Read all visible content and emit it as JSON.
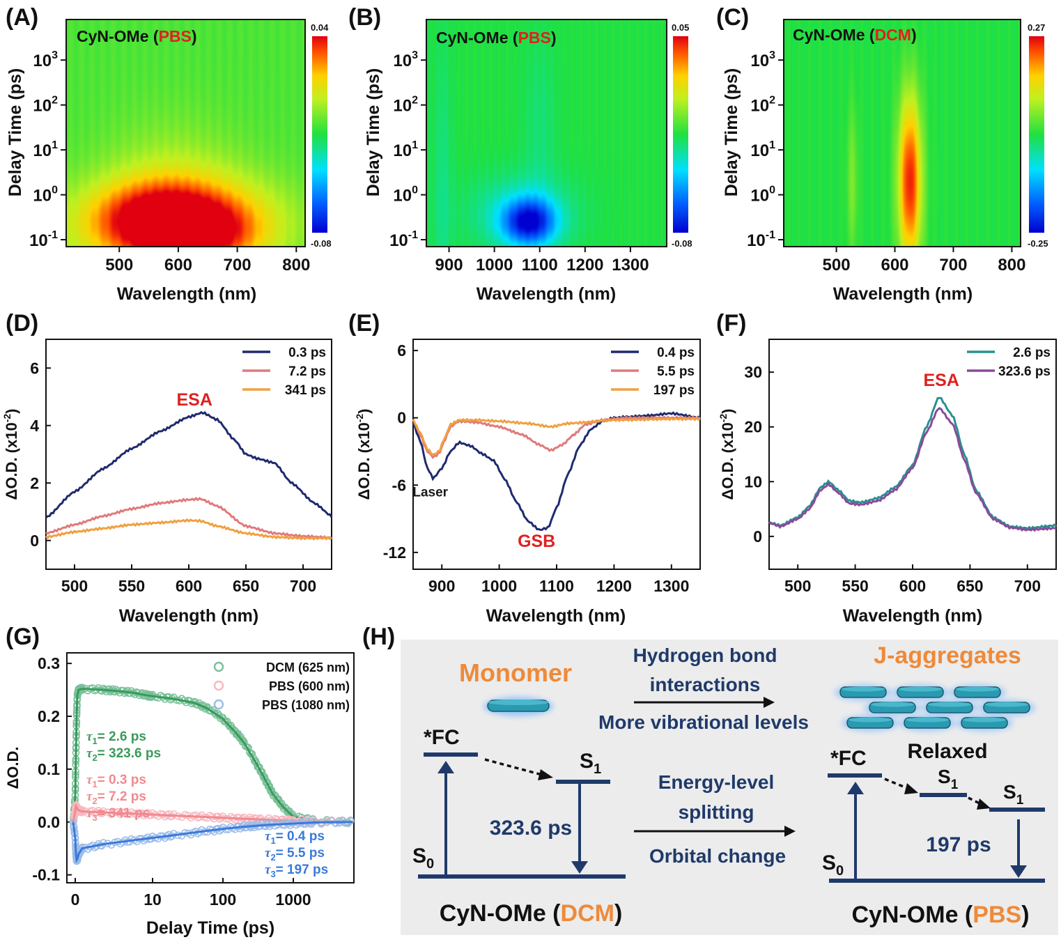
{
  "figure": {
    "panel_labels": [
      "(A)",
      "(B)",
      "(C)",
      "(D)",
      "(E)",
      "(F)",
      "(G)",
      "(H)"
    ],
    "colors": {
      "navy": "#1f2a6e",
      "salmon": "#e07a7a",
      "orange": "#f0a040",
      "teal": "#2a9090",
      "purple": "#8a4a9a",
      "green_fit": "#3a9a5a",
      "green_pts": "#7ac09a",
      "pink_fit": "#f08a90",
      "pink_pts": "#f8b8c0",
      "blue_fit": "#3a7ad8",
      "blue_pts": "#9cbce8",
      "red_label": "#e02020",
      "orange_label": "#ee8a3a",
      "scheme_bg": "#ececec",
      "scheme_dark": "#1f3a6a",
      "disc": "#2a9ab0"
    }
  },
  "chart_data": [
    {
      "panel": "(A)",
      "type": "heatmap",
      "title_main": "CyN-OMe (",
      "title_solvent": "PBS",
      "title_close": ")",
      "xlabel": "Wavelength (nm)",
      "ylabel": "Delay Time (ps)",
      "xlim": [
        410,
        815
      ],
      "xticks": [
        500,
        600,
        700,
        800
      ],
      "yscale": "log",
      "ylim": [
        0.07,
        8000
      ],
      "yticks": [
        {
          "v": 0.1,
          "b": "10",
          "e": "-1"
        },
        {
          "v": 1,
          "b": "10",
          "e": "0"
        },
        {
          "v": 10,
          "b": "10",
          "e": "1"
        },
        {
          "v": 100,
          "b": "10",
          "e": "2"
        },
        {
          "v": 1000,
          "b": "10",
          "e": "3"
        }
      ],
      "colorbar": {
        "max": "0.04",
        "min": "-0.08"
      },
      "background_value": 0.1,
      "blobs": [
        {
          "x": 600,
          "y": 0.2,
          "sx": 110,
          "sy": 0.75,
          "amp": 0.95
        },
        {
          "x": 560,
          "y": 0.3,
          "sx": 70,
          "sy": 0.5,
          "amp": 0.4
        },
        {
          "x": 650,
          "y": 0.15,
          "sx": 50,
          "sy": 0.4,
          "amp": 0.3
        },
        {
          "x": 590,
          "y": 3,
          "sx": 80,
          "sy": 1.0,
          "amp": 0.15
        }
      ]
    },
    {
      "panel": "(B)",
      "type": "heatmap",
      "title_main": "CyN-OMe (",
      "title_solvent": "PBS",
      "title_close": ")",
      "xlabel": "Wavelength (nm)",
      "ylabel": "Delay Time (ps)",
      "xlim": [
        850,
        1380
      ],
      "xticks": [
        900,
        1000,
        1100,
        1200,
        1300
      ],
      "yscale": "log",
      "ylim": [
        0.07,
        8000
      ],
      "yticks": [
        {
          "v": 0.1,
          "b": "10",
          "e": "-1"
        },
        {
          "v": 1,
          "b": "10",
          "e": "0"
        },
        {
          "v": 10,
          "b": "10",
          "e": "1"
        },
        {
          "v": 100,
          "b": "10",
          "e": "2"
        },
        {
          "v": 1000,
          "b": "10",
          "e": "3"
        }
      ],
      "colorbar": {
        "max": "0.05",
        "min": "-0.08"
      },
      "background_value": 0.0,
      "blobs": [
        {
          "x": 1075,
          "y": 0.25,
          "sx": 40,
          "sy": 0.35,
          "amp": -0.85
        },
        {
          "x": 1060,
          "y": 0.4,
          "sx": 80,
          "sy": 0.6,
          "amp": -0.25
        },
        {
          "x": 1100,
          "y": 30,
          "sx": 25,
          "sy": 1.5,
          "amp": -0.1
        },
        {
          "x": 885,
          "y": 1,
          "sx": 15,
          "sy": 2.5,
          "amp": -0.12
        }
      ]
    },
    {
      "panel": "(C)",
      "type": "heatmap",
      "title_main": "CyN-OMe (",
      "title_solvent": "DCM",
      "title_close": ")",
      "xlabel": "Wavelength (nm)",
      "ylabel": "Delay Time (ps)",
      "xlim": [
        410,
        815
      ],
      "xticks": [
        500,
        600,
        700,
        800
      ],
      "yscale": "log",
      "ylim": [
        0.07,
        8000
      ],
      "yticks": [
        {
          "v": 0.1,
          "b": "10",
          "e": "-1"
        },
        {
          "v": 1,
          "b": "10",
          "e": "0"
        },
        {
          "v": 10,
          "b": "10",
          "e": "1"
        },
        {
          "v": 100,
          "b": "10",
          "e": "2"
        },
        {
          "v": 1000,
          "b": "10",
          "e": "3"
        }
      ],
      "colorbar": {
        "max": "0.27",
        "min": "-0.25"
      },
      "background_value": 0.0,
      "blobs": [
        {
          "x": 625,
          "y": 2,
          "sx": 14,
          "sy": 1.35,
          "amp": 0.95
        },
        {
          "x": 527,
          "y": 2,
          "sx": 7,
          "sy": 1.2,
          "amp": 0.2
        }
      ]
    },
    {
      "panel": "(D)",
      "type": "line",
      "xlabel": "Wavelength (nm)",
      "ylabel_main": "ΔO.D. (x10",
      "ylabel_exp": "-2",
      "ylabel_close": ")",
      "xlim": [
        475,
        725
      ],
      "ylim": [
        -1,
        7
      ],
      "xticks": [
        500,
        550,
        600,
        650,
        700
      ],
      "yticks": [
        0,
        2,
        4,
        6
      ],
      "legend_position": "top-right",
      "series": [
        {
          "name": "0.3 ps",
          "color": "#1f2a6e",
          "x": [
            475,
            500,
            525,
            550,
            575,
            600,
            612,
            625,
            640,
            650,
            660,
            675,
            690,
            710,
            725
          ],
          "y": [
            0.8,
            1.7,
            2.5,
            3.2,
            3.8,
            4.3,
            4.45,
            4.2,
            3.5,
            3.0,
            2.85,
            2.7,
            2.0,
            1.3,
            0.85
          ]
        },
        {
          "name": "7.2 ps",
          "color": "#e07a7a",
          "x": [
            475,
            500,
            525,
            550,
            575,
            600,
            610,
            625,
            650,
            675,
            700,
            725
          ],
          "y": [
            0.25,
            0.55,
            0.85,
            1.1,
            1.3,
            1.42,
            1.45,
            1.2,
            0.5,
            0.25,
            0.15,
            0.1
          ]
        },
        {
          "name": "341 ps",
          "color": "#f0a040",
          "x": [
            475,
            500,
            525,
            550,
            575,
            600,
            610,
            625,
            650,
            675,
            700,
            725
          ],
          "y": [
            0.12,
            0.3,
            0.42,
            0.55,
            0.62,
            0.7,
            0.68,
            0.5,
            0.25,
            0.12,
            0.08,
            0.08
          ]
        }
      ],
      "annotations": [
        {
          "text": "ESA",
          "x": 605,
          "y": 4.7,
          "color": "#e02020"
        }
      ]
    },
    {
      "panel": "(E)",
      "type": "line",
      "xlabel": "Wavelength (nm)",
      "ylabel_main": "ΔO.D. (x10",
      "ylabel_exp": "-2",
      "ylabel_close": ")",
      "xlim": [
        850,
        1350
      ],
      "ylim": [
        -13.5,
        7
      ],
      "xticks": [
        900,
        1000,
        1100,
        1200,
        1300
      ],
      "yticks": [
        -12,
        -6,
        0,
        6
      ],
      "legend_position": "top-right",
      "series": [
        {
          "name": "0.4 ps",
          "color": "#1f2a6e",
          "x": [
            850,
            862,
            875,
            885,
            900,
            915,
            930,
            950,
            970,
            990,
            1010,
            1030,
            1050,
            1070,
            1085,
            1100,
            1120,
            1140,
            1160,
            1180,
            1200,
            1230,
            1260,
            1300,
            1350
          ],
          "y": [
            -0.5,
            -2,
            -4.5,
            -5.4,
            -4.5,
            -3,
            -2.2,
            -2.5,
            -3.2,
            -3.8,
            -5.5,
            -7.5,
            -9.2,
            -10,
            -9.8,
            -8,
            -5,
            -2.5,
            -1,
            -0.3,
            0,
            0.1,
            0.2,
            0.4,
            0
          ]
        },
        {
          "name": "5.5 ps",
          "color": "#e07a7a",
          "x": [
            850,
            862,
            875,
            885,
            895,
            905,
            915,
            930,
            960,
            1000,
            1040,
            1070,
            1090,
            1110,
            1130,
            1150,
            1180,
            1220,
            1300,
            1350
          ],
          "y": [
            -0.2,
            -1.5,
            -3,
            -3.5,
            -3.2,
            -2,
            -0.8,
            -0.3,
            -0.4,
            -0.8,
            -1.5,
            -2.4,
            -2.9,
            -2.4,
            -1.5,
            -0.6,
            -0.2,
            0,
            0,
            0
          ]
        },
        {
          "name": "197 ps",
          "color": "#f0a040",
          "x": [
            850,
            862,
            875,
            885,
            895,
            905,
            915,
            930,
            960,
            1000,
            1050,
            1090,
            1120,
            1200,
            1300,
            1350
          ],
          "y": [
            -0.2,
            -1.3,
            -2.8,
            -3.3,
            -3,
            -1.8,
            -0.6,
            -0.2,
            -0.2,
            -0.3,
            -0.5,
            -0.8,
            -0.5,
            -0.2,
            -0.1,
            -0.1
          ]
        }
      ],
      "annotations": [
        {
          "text": "GSB",
          "x": 1065,
          "y": -11.5,
          "color": "#e02020"
        },
        {
          "text": "Laser",
          "x": 880,
          "y": -7,
          "color": "#1a1a1a"
        }
      ]
    },
    {
      "panel": "(F)",
      "type": "line",
      "xlabel": "Wavelength (nm)",
      "ylabel_main": "ΔO.D. (x10",
      "ylabel_exp": "-2",
      "ylabel_close": ")",
      "xlim": [
        475,
        725
      ],
      "ylim": [
        -6,
        36
      ],
      "xticks": [
        500,
        550,
        600,
        650,
        700
      ],
      "yticks": [
        0,
        10,
        20,
        30
      ],
      "legend_position": "top-right",
      "series": [
        {
          "name": "2.6 ps",
          "color": "#2a9090",
          "x": [
            475,
            485,
            500,
            510,
            520,
            527,
            535,
            545,
            555,
            570,
            585,
            600,
            612,
            623,
            635,
            645,
            655,
            670,
            685,
            700,
            725
          ],
          "y": [
            2.5,
            2,
            3.5,
            5.5,
            9,
            10,
            8.5,
            6.5,
            6.2,
            7,
            9,
            13,
            20,
            25.5,
            22,
            15,
            8.5,
            3.5,
            1.8,
            1.5,
            2
          ]
        },
        {
          "name": "323.6 ps",
          "color": "#8a4a9a",
          "x": [
            475,
            485,
            500,
            510,
            520,
            527,
            535,
            545,
            555,
            570,
            585,
            600,
            612,
            623,
            635,
            645,
            655,
            670,
            685,
            700,
            725
          ],
          "y": [
            2.5,
            1.8,
            3.2,
            5,
            8.5,
            9.5,
            8,
            6,
            5.8,
            6.5,
            8.5,
            12.5,
            19,
            23.5,
            20.5,
            14,
            8,
            3.2,
            1.6,
            1.2,
            1.5
          ]
        }
      ],
      "annotations": [
        {
          "text": "ESA",
          "x": 625,
          "y": 27.5,
          "color": "#e02020"
        }
      ]
    },
    {
      "panel": "(G)",
      "type": "scatter",
      "xlabel": "Delay Time (ps)",
      "ylabel": "ΔO.D.",
      "xscale": "linear-log",
      "xlim": [
        -0.5,
        7000
      ],
      "ylim": [
        -0.115,
        0.32
      ],
      "xticks": [
        {
          "v": 0,
          "label": "0"
        },
        {
          "v": 10,
          "label": "10"
        },
        {
          "v": 100,
          "label": "100"
        },
        {
          "v": 1000,
          "label": "1000"
        }
      ],
      "yticks": [
        {
          "v": -0.1,
          "label": "-0.1"
        },
        {
          "v": 0.0,
          "label": "0.0"
        },
        {
          "v": 0.1,
          "label": "0.1"
        },
        {
          "v": 0.2,
          "label": "0.2"
        },
        {
          "v": 0.3,
          "label": "0.3"
        }
      ],
      "legend_position": "top-right",
      "series": [
        {
          "name": "DCM (625 nm)",
          "color": "#3a9a5a",
          "point_color": "#7ac09a",
          "x": [
            -0.3,
            0,
            0.1,
            0.2,
            0.3,
            0.5,
            1,
            2,
            3,
            5,
            8,
            10,
            20,
            40,
            60,
            100,
            150,
            200,
            300,
            400,
            500,
            700,
            1000,
            2000,
            7000
          ],
          "y": [
            0,
            0.05,
            0.13,
            0.2,
            0.24,
            0.25,
            0.252,
            0.25,
            0.248,
            0.245,
            0.24,
            0.238,
            0.233,
            0.225,
            0.215,
            0.195,
            0.17,
            0.15,
            0.11,
            0.08,
            0.055,
            0.03,
            0.01,
            0.002,
            0
          ]
        },
        {
          "name": "PBS (600 nm)",
          "color": "#f08a90",
          "point_color": "#f8b8c0",
          "x": [
            -0.3,
            0,
            0.1,
            0.2,
            0.3,
            0.5,
            1,
            2,
            5,
            10,
            20,
            50,
            100,
            200,
            341,
            700,
            1000,
            2000,
            7000
          ],
          "y": [
            0,
            0.02,
            0.03,
            0.028,
            0.025,
            0.022,
            0.02,
            0.018,
            0.016,
            0.014,
            0.012,
            0.01,
            0.008,
            0.006,
            0.005,
            0.003,
            0.002,
            0.001,
            0
          ]
        },
        {
          "name": "PBS (1080 nm)",
          "color": "#3a7ad8",
          "point_color": "#9cbce8",
          "x": [
            -0.3,
            0,
            0.1,
            0.2,
            0.3,
            0.5,
            1,
            2,
            5,
            10,
            20,
            50,
            100,
            197,
            300,
            500,
            1000,
            2000,
            7000
          ],
          "y": [
            0,
            -0.03,
            -0.06,
            -0.072,
            -0.07,
            -0.06,
            -0.05,
            -0.042,
            -0.035,
            -0.03,
            -0.025,
            -0.018,
            -0.013,
            -0.009,
            -0.007,
            -0.005,
            -0.003,
            -0.001,
            0
          ]
        }
      ],
      "fit_labels": [
        {
          "lines": [
            {
              "i": "1",
              "val": "= 2.6 ps"
            },
            {
              "i": "2",
              "val": "= 323.6 ps"
            }
          ],
          "color": "#3a9a5a"
        },
        {
          "lines": [
            {
              "i": "1",
              "val": "= 0.3 ps"
            },
            {
              "i": "2",
              "val": "= 7.2 ps"
            },
            {
              "i": "3",
              "val": "= 341 ps"
            }
          ],
          "color": "#f08a90"
        },
        {
          "lines": [
            {
              "i": "1",
              "val": "= 0.4 ps"
            },
            {
              "i": "2",
              "val": "= 5.5 ps"
            },
            {
              "i": "3",
              "val": "= 197 ps"
            }
          ],
          "color": "#3a7ad8"
        }
      ],
      "tau_symbol": "τ"
    }
  ],
  "scheme": {
    "monomer_title": "Monomer",
    "jagg_title": "J-aggregates",
    "arrow1_line1": "Hydrogen bond",
    "arrow1_line2": "interactions",
    "arrow1_below": "More vibrational levels",
    "arrow2_line1": "Energy-level",
    "arrow2_line2": "splitting",
    "arrow2_below": "Orbital change",
    "left": {
      "fc": "*FC",
      "s1": "S",
      "s1_sub": "1",
      "s0": "S",
      "s0_sub": "0",
      "lifetime": "323.6 ps",
      "caption_main": "CyN-OMe (",
      "caption_solvent": "DCM",
      "caption_close": ")"
    },
    "right": {
      "fc": "*FC",
      "relaxed": "Relaxed",
      "s1a": "S",
      "s1a_sub": "1",
      "s1b": "S",
      "s1b_sub": "1",
      "s0": "S",
      "s0_sub": "0",
      "lifetime": "197 ps",
      "caption_main": "CyN-OMe (",
      "caption_solvent": "PBS",
      "caption_close": ")"
    }
  }
}
